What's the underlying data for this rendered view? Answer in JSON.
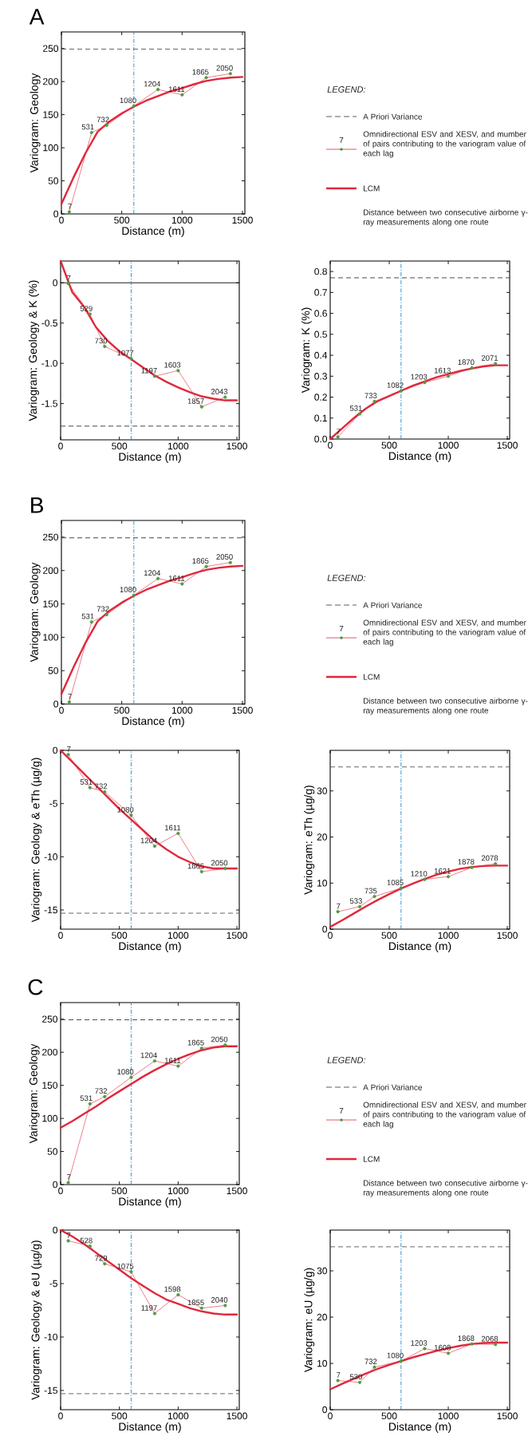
{
  "chart_data": [
    {
      "type": "line",
      "title": "A",
      "xlabel": "Distance (m)",
      "ylabel": "Variogram: Geology",
      "xlim": [
        0,
        1520
      ],
      "xticks": [
        0,
        500,
        1000,
        1500
      ],
      "ylim": [
        0,
        275
      ],
      "yticks": [
        0,
        50,
        100,
        150,
        200,
        250
      ],
      "series": [
        {
          "color": "#e0283c",
          "marker": "circle",
          "x": [
            65,
            250,
            375,
            600,
            800,
            1000,
            1200,
            1400
          ],
          "values": [
            3,
            123,
            134,
            163,
            188,
            180,
            206,
            212
          ]
        },
        {
          "color": "#e0283c",
          "marker": "none",
          "x": [
            0,
            100,
            200,
            300,
            400,
            500,
            600,
            700,
            800,
            900,
            1000,
            1100,
            1200,
            1300,
            1400,
            1500
          ],
          "values": [
            15,
            55,
            92,
            124,
            140,
            152,
            162,
            171,
            178,
            185,
            190,
            196,
            201,
            204,
            206,
            207
          ]
        }
      ],
      "ref_lines": [
        {
          "axis": "y",
          "value": 249,
          "color": "#555555",
          "line_style": "dashed"
        },
        {
          "axis": "x",
          "value": 600,
          "color": "#1b8bd2",
          "line_style": "dashdot"
        }
      ],
      "annotations": [
        {
          "text": "7",
          "x": 65,
          "y": 3
        },
        {
          "text": "531",
          "x": 250,
          "y": 123
        },
        {
          "text": "732",
          "x": 375,
          "y": 134
        },
        {
          "text": "1080",
          "x": 600,
          "y": 163
        },
        {
          "text": "1204",
          "x": 800,
          "y": 188
        },
        {
          "text": "1611",
          "x": 1000,
          "y": 180
        },
        {
          "text": "1865",
          "x": 1200,
          "y": 206
        },
        {
          "text": "2050",
          "x": 1400,
          "y": 212
        }
      ]
    },
    {
      "type": "other",
      "annotations": [
        "LEGEND:",
        "A Priori Variance",
        "7",
        "Omnidirectional ESV and XESV, and mumber of pairs contributing to the variogram value of each lag",
        "LCM",
        "Distance between two consecutive airborne γ-ray measurements along one route"
      ]
    },
    {
      "type": "line",
      "xlabel": "Distance (m)",
      "ylabel": "Variogram: Geology & K (%)",
      "xlim": [
        0,
        1520
      ],
      "xticks": [
        0,
        500,
        1000,
        1500
      ],
      "ylim": [
        -1.95,
        0.27
      ],
      "yticks": [
        {
          "value": -1.5,
          "label": "-1.5"
        },
        {
          "value": -1,
          "label": "-1.0"
        },
        {
          "value": -0.5,
          "label": "-0.5"
        },
        0
      ],
      "series": [
        {
          "color": "#e0283c",
          "marker": "circle",
          "x": [
            65,
            250,
            375,
            600,
            800,
            1000,
            1200,
            1400
          ],
          "values": [
            -0.01,
            -0.39,
            -0.79,
            -0.94,
            -1.16,
            -1.09,
            -1.54,
            -1.42
          ]
        },
        {
          "color": "#e0283c",
          "marker": "none",
          "x": [
            0,
            100,
            200,
            300,
            400,
            500,
            600,
            700,
            800,
            900,
            1000,
            1100,
            1200,
            1300,
            1400,
            1500
          ],
          "values": [
            0.27,
            -0.12,
            -0.3,
            -0.55,
            -0.72,
            -0.85,
            -0.95,
            -1.05,
            -1.15,
            -1.23,
            -1.3,
            -1.36,
            -1.41,
            -1.44,
            -1.46,
            -1.46
          ]
        }
      ],
      "ref_lines": [
        {
          "axis": "y",
          "value": 0,
          "color": "#000000",
          "line_style": "solid"
        },
        {
          "axis": "y",
          "value": -1.78,
          "color": "#333333",
          "line_style": "dashed"
        },
        {
          "axis": "x",
          "value": 600,
          "color": "#1b8bd2",
          "line_style": "dashdot"
        }
      ],
      "annotations": [
        {
          "text": "7",
          "x": 65,
          "y": -0.01
        },
        {
          "text": "529",
          "x": 250,
          "y": -0.39
        },
        {
          "text": "730",
          "x": 375,
          "y": -0.79
        },
        {
          "text": "1077",
          "x": 600,
          "y": -0.94
        },
        {
          "text": "1197",
          "x": 800,
          "y": -1.16
        },
        {
          "text": "1603",
          "x": 1000,
          "y": -1.09
        },
        {
          "text": "1857",
          "x": 1200,
          "y": -1.54
        },
        {
          "text": "2043",
          "x": 1400,
          "y": -1.42
        }
      ]
    },
    {
      "type": "line",
      "xlabel": "Distance (m)",
      "ylabel": "Variogram: K (%)",
      "xlim": [
        0,
        1520
      ],
      "xticks": [
        0,
        500,
        1000,
        1500
      ],
      "ylim": [
        0,
        0.85
      ],
      "yticks": [
        {
          "value": 0,
          "label": "0.0"
        },
        0.1,
        0.2,
        0.3,
        0.4,
        0.5,
        0.6,
        0.7,
        0.8
      ],
      "series": [
        {
          "color": "#e0283c",
          "marker": "circle",
          "x": [
            65,
            250,
            375,
            600,
            800,
            1000,
            1200,
            1400
          ],
          "values": [
            0.01,
            0.12,
            0.18,
            0.23,
            0.27,
            0.3,
            0.34,
            0.36
          ]
        },
        {
          "color": "#e0283c",
          "marker": "none",
          "x": [
            0,
            100,
            200,
            300,
            400,
            500,
            600,
            700,
            800,
            900,
            1000,
            1100,
            1200,
            1300,
            1400,
            1500
          ],
          "values": [
            0,
            0.05,
            0.1,
            0.145,
            0.18,
            0.205,
            0.23,
            0.255,
            0.275,
            0.295,
            0.31,
            0.325,
            0.337,
            0.347,
            0.352,
            0.352
          ]
        }
      ],
      "ref_lines": [
        {
          "axis": "y",
          "value": 0.77,
          "color": "#333333",
          "line_style": "dashed"
        },
        {
          "axis": "x",
          "value": 600,
          "color": "#1b8bd2",
          "line_style": "dashdot"
        }
      ],
      "annotations": [
        {
          "text": "7",
          "x": 65,
          "y": 0.01
        },
        {
          "text": "531",
          "x": 250,
          "y": 0.12
        },
        {
          "text": "733",
          "x": 375,
          "y": 0.18
        },
        {
          "text": "1082",
          "x": 600,
          "y": 0.23
        },
        {
          "text": "1203",
          "x": 800,
          "y": 0.27
        },
        {
          "text": "1613",
          "x": 1000,
          "y": 0.3
        },
        {
          "text": "1870",
          "x": 1200,
          "y": 0.34
        },
        {
          "text": "2071",
          "x": 1400,
          "y": 0.36
        }
      ]
    },
    {
      "type": "line",
      "title": "B",
      "xlabel": "Distance (m)",
      "ylabel": "Variogram: Geology",
      "xlim": [
        0,
        1520
      ],
      "xticks": [
        0,
        500,
        1000,
        1500
      ],
      "ylim": [
        0,
        275
      ],
      "yticks": [
        0,
        50,
        100,
        150,
        200,
        250
      ],
      "series": [
        {
          "color": "#e0283c",
          "marker": "circle",
          "x": [
            65,
            250,
            375,
            600,
            800,
            1000,
            1200,
            1400
          ],
          "values": [
            3,
            123,
            134,
            163,
            188,
            180,
            206,
            212
          ]
        },
        {
          "color": "#e0283c",
          "marker": "none",
          "x": [
            0,
            100,
            200,
            300,
            400,
            500,
            600,
            700,
            800,
            900,
            1000,
            1100,
            1200,
            1300,
            1400,
            1500
          ],
          "values": [
            15,
            55,
            92,
            124,
            140,
            152,
            162,
            171,
            178,
            185,
            190,
            196,
            201,
            204,
            206,
            207
          ]
        }
      ],
      "ref_lines": [
        {
          "axis": "y",
          "value": 249,
          "color": "#333333",
          "line_style": "dashed"
        },
        {
          "axis": "x",
          "value": 600,
          "color": "#1b8bd2",
          "line_style": "dashdot"
        }
      ],
      "annotations": [
        {
          "text": "7",
          "x": 65,
          "y": 3
        },
        {
          "text": "531",
          "x": 250,
          "y": 123
        },
        {
          "text": "732",
          "x": 375,
          "y": 134
        },
        {
          "text": "1080",
          "x": 600,
          "y": 163
        },
        {
          "text": "1204",
          "x": 800,
          "y": 188
        },
        {
          "text": "1611",
          "x": 1000,
          "y": 180
        },
        {
          "text": "1865",
          "x": 1200,
          "y": 206
        },
        {
          "text": "2050",
          "x": 1400,
          "y": 212
        }
      ]
    },
    {
      "type": "other",
      "annotations": [
        "LEGEND:",
        "A Priori Variance",
        "7",
        "Omnidirectional ESV and XESV, and mumber of pairs contributing to the variogram value of each lag",
        "LCM",
        "Distance between two consecutive airborne γ-ray measurements along one route"
      ]
    },
    {
      "type": "line",
      "xlabel": "Distance (m)",
      "ylabel": "Variogram: Geology & eTh (µg/g)",
      "xlim": [
        0,
        1520
      ],
      "xticks": [
        0,
        500,
        1000,
        1500
      ],
      "ylim": [
        -16.8,
        0
      ],
      "yticks": [
        -15,
        -10,
        -5,
        0
      ],
      "series": [
        {
          "color": "#e0283c",
          "marker": "circle",
          "x": [
            65,
            250,
            375,
            600,
            800,
            1000,
            1200,
            1400
          ],
          "values": [
            -0.4,
            -3.5,
            -3.9,
            -6.1,
            -9.0,
            -7.8,
            -11.4,
            -11.1
          ]
        },
        {
          "color": "#e0283c",
          "marker": "none",
          "x": [
            0,
            100,
            200,
            300,
            400,
            500,
            600,
            700,
            800,
            900,
            1000,
            1100,
            1200,
            1300,
            1400,
            1500
          ],
          "values": [
            0,
            -1.1,
            -2.2,
            -3.3,
            -4.4,
            -5.5,
            -6.5,
            -7.5,
            -8.5,
            -9.3,
            -10.0,
            -10.5,
            -10.9,
            -11.1,
            -11.1,
            -11.1
          ]
        }
      ],
      "ref_lines": [
        {
          "axis": "y",
          "value": -15.3,
          "color": "#555555",
          "line_style": "dashed"
        },
        {
          "axis": "x",
          "value": 600,
          "color": "#1b8bd2",
          "line_style": "dashdot"
        }
      ],
      "annotations": [
        {
          "text": "7",
          "x": 65,
          "y": -0.4
        },
        {
          "text": "531",
          "x": 250,
          "y": -3.5
        },
        {
          "text": "732",
          "x": 375,
          "y": -3.9
        },
        {
          "text": "1080",
          "x": 600,
          "y": -6.1
        },
        {
          "text": "1204",
          "x": 800,
          "y": -9.0
        },
        {
          "text": "1611",
          "x": 1000,
          "y": -7.8
        },
        {
          "text": "1865",
          "x": 1200,
          "y": -11.4
        },
        {
          "text": "2050",
          "x": 1400,
          "y": -11.1
        }
      ]
    },
    {
      "type": "line",
      "xlabel": "Distance (m)",
      "ylabel": "Variogram: eTh (µg/g)",
      "xlim": [
        0,
        1520
      ],
      "xticks": [
        0,
        500,
        1000,
        1500
      ],
      "ylim": [
        0,
        38.8
      ],
      "yticks": [
        0,
        10,
        20,
        30
      ],
      "series": [
        {
          "color": "#e0283c",
          "marker": "circle",
          "x": [
            65,
            250,
            375,
            600,
            800,
            1000,
            1200,
            1400
          ],
          "values": [
            3.8,
            4.9,
            7.1,
            8.9,
            10.8,
            11.4,
            13.4,
            14.2
          ]
        },
        {
          "color": "#e0283c",
          "marker": "none",
          "x": [
            0,
            100,
            200,
            300,
            400,
            500,
            600,
            700,
            800,
            900,
            1000,
            1100,
            1200,
            1300,
            1400,
            1500
          ],
          "values": [
            0.5,
            1.9,
            3.4,
            4.9,
            6.3,
            7.6,
            8.8,
            9.9,
            10.9,
            11.8,
            12.5,
            13.1,
            13.5,
            13.7,
            13.8,
            13.8
          ]
        }
      ],
      "ref_lines": [
        {
          "axis": "y",
          "value": 35.2,
          "color": "#555555",
          "line_style": "dashed"
        },
        {
          "axis": "x",
          "value": 600,
          "color": "#1b8bd2",
          "line_style": "dashdot"
        }
      ],
      "annotations": [
        {
          "text": "7",
          "x": 65,
          "y": 3.8
        },
        {
          "text": "533",
          "x": 250,
          "y": 4.9
        },
        {
          "text": "735",
          "x": 375,
          "y": 7.1
        },
        {
          "text": "1085",
          "x": 600,
          "y": 8.9
        },
        {
          "text": "1210",
          "x": 800,
          "y": 10.8
        },
        {
          "text": "1621",
          "x": 1000,
          "y": 11.4
        },
        {
          "text": "1878",
          "x": 1200,
          "y": 13.4
        },
        {
          "text": "2078",
          "x": 1400,
          "y": 14.2
        }
      ]
    },
    {
      "type": "line",
      "title": "C",
      "xlabel": "Distance (m)",
      "ylabel": "Variogram: Geology",
      "xlim": [
        0,
        1520
      ],
      "xticks": [
        0,
        500,
        1000,
        1500
      ],
      "ylim": [
        0,
        275
      ],
      "yticks": [
        0,
        50,
        100,
        150,
        200,
        250
      ],
      "series": [
        {
          "color": "#e0283c",
          "marker": "circle",
          "x": [
            65,
            250,
            375,
            600,
            800,
            1000,
            1200,
            1400
          ],
          "values": [
            3,
            122,
            133,
            162,
            187,
            179,
            206,
            211
          ]
        },
        {
          "color": "#e0283c",
          "marker": "none",
          "x": [
            0,
            100,
            200,
            300,
            400,
            500,
            600,
            700,
            800,
            900,
            1000,
            1100,
            1200,
            1300,
            1400,
            1500
          ],
          "values": [
            86,
            96,
            107,
            118,
            130,
            141,
            152,
            163,
            173,
            182,
            190,
            197,
            203,
            207,
            209,
            209
          ]
        }
      ],
      "ref_lines": [
        {
          "axis": "y",
          "value": 249,
          "color": "#333333",
          "line_style": "dashed"
        },
        {
          "axis": "x",
          "value": 600,
          "color": "#1b8bd2",
          "line_style": "dashdot"
        }
      ],
      "annotations": [
        {
          "text": "7",
          "x": 65,
          "y": 3
        },
        {
          "text": "531",
          "x": 250,
          "y": 122
        },
        {
          "text": "732",
          "x": 375,
          "y": 133
        },
        {
          "text": "1080",
          "x": 600,
          "y": 162
        },
        {
          "text": "1204",
          "x": 800,
          "y": 187
        },
        {
          "text": "1611",
          "x": 1000,
          "y": 179
        },
        {
          "text": "1865",
          "x": 1200,
          "y": 206
        },
        {
          "text": "2050",
          "x": 1400,
          "y": 211
        }
      ]
    },
    {
      "type": "other",
      "annotations": [
        "LEGEND:",
        "A Priori Variance",
        "7",
        "Omnidirectional ESV and XESV, and mumber of pairs contributing to the variogram value of each lag",
        "LCM",
        "Distance between two consecutive airborne γ-ray measurements along one route"
      ]
    },
    {
      "type": "line",
      "xlabel": "Distance (m)",
      "ylabel": "Variogram: Geology & eU (µg/g)",
      "xlim": [
        0,
        1520
      ],
      "xticks": [
        0,
        500,
        1000,
        1500
      ],
      "ylim": [
        -16.8,
        0
      ],
      "yticks": [
        -15,
        -10,
        -5,
        0
      ],
      "series": [
        {
          "color": "#e0283c",
          "marker": "circle",
          "x": [
            65,
            250,
            375,
            600,
            800,
            1000,
            1200,
            1400
          ],
          "values": [
            -1.0,
            -1.5,
            -3.15,
            -3.9,
            -7.8,
            -6.05,
            -7.3,
            -7.05
          ]
        },
        {
          "color": "#e0283c",
          "marker": "none",
          "x": [
            0,
            100,
            200,
            300,
            400,
            500,
            600,
            700,
            800,
            900,
            1000,
            1100,
            1200,
            1300,
            1400,
            1500
          ],
          "values": [
            0,
            -0.6,
            -1.3,
            -2.1,
            -2.9,
            -3.7,
            -4.5,
            -5.2,
            -5.9,
            -6.5,
            -6.9,
            -7.3,
            -7.6,
            -7.8,
            -7.9,
            -7.9
          ]
        }
      ],
      "ref_lines": [
        {
          "axis": "y",
          "value": -15.3,
          "color": "#555555",
          "line_style": "dashed"
        },
        {
          "axis": "x",
          "value": 600,
          "color": "#1b8bd2",
          "line_style": "dashdot"
        }
      ],
      "annotations": [
        {
          "text": "7",
          "x": 65,
          "y": -1.0
        },
        {
          "text": "528",
          "x": 250,
          "y": -1.5
        },
        {
          "text": "729",
          "x": 375,
          "y": -3.15
        },
        {
          "text": "1075",
          "x": 600,
          "y": -3.9
        },
        {
          "text": "1197",
          "x": 800,
          "y": -7.8
        },
        {
          "text": "1598",
          "x": 1000,
          "y": -6.05
        },
        {
          "text": "1855",
          "x": 1200,
          "y": -7.3
        },
        {
          "text": "2040",
          "x": 1400,
          "y": -7.05
        }
      ]
    },
    {
      "type": "line",
      "xlabel": "Distance (m)",
      "ylabel": "Variogram: eU (µg/g)",
      "xlim": [
        0,
        1520
      ],
      "xticks": [
        0,
        500,
        1000,
        1500
      ],
      "ylim": [
        0,
        38.8
      ],
      "yticks": [
        0,
        10,
        20,
        30
      ],
      "series": [
        {
          "color": "#e0283c",
          "marker": "circle",
          "x": [
            65,
            250,
            375,
            600,
            800,
            1000,
            1200,
            1400
          ],
          "values": [
            6.3,
            5.9,
            9.2,
            10.5,
            13.2,
            12.2,
            14.2,
            14.1
          ]
        },
        {
          "color": "#e0283c",
          "marker": "none",
          "x": [
            0,
            100,
            200,
            300,
            400,
            500,
            600,
            700,
            800,
            900,
            1000,
            1100,
            1200,
            1300,
            1400,
            1500
          ],
          "values": [
            4.4,
            5.6,
            6.7,
            7.8,
            8.8,
            9.7,
            10.5,
            11.3,
            12.0,
            12.7,
            13.3,
            13.8,
            14.2,
            14.4,
            14.5,
            14.5
          ]
        }
      ],
      "ref_lines": [
        {
          "axis": "y",
          "value": 35.2,
          "color": "#555555",
          "line_style": "dashed"
        },
        {
          "axis": "x",
          "value": 600,
          "color": "#1b8bd2",
          "line_style": "dashdot"
        }
      ],
      "annotations": [
        {
          "text": "7",
          "x": 65,
          "y": 6.3
        },
        {
          "text": "530",
          "x": 250,
          "y": 5.9
        },
        {
          "text": "732",
          "x": 375,
          "y": 9.2
        },
        {
          "text": "1080",
          "x": 600,
          "y": 10.5
        },
        {
          "text": "1203",
          "x": 800,
          "y": 13.2
        },
        {
          "text": "1608",
          "x": 1000,
          "y": 12.2
        },
        {
          "text": "1868",
          "x": 1200,
          "y": 14.2
        },
        {
          "text": "2068",
          "x": 1400,
          "y": 14.1
        }
      ]
    }
  ]
}
